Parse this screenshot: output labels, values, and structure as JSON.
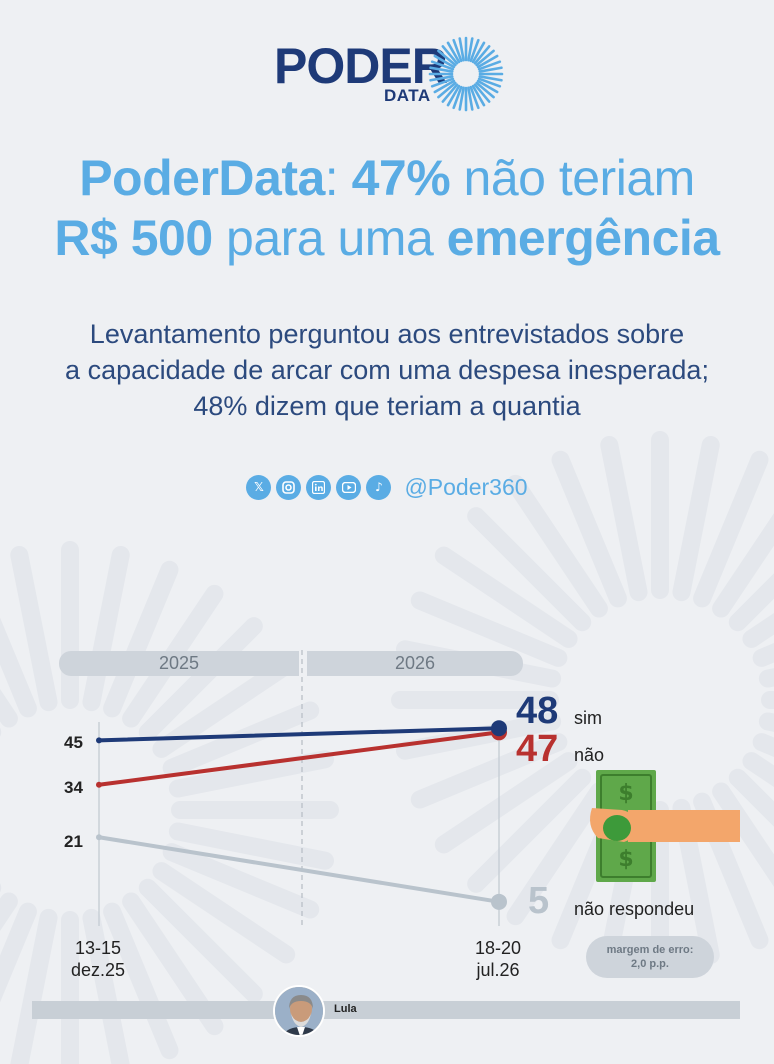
{
  "logo": {
    "word": "PODER",
    "sub": "DATA"
  },
  "title": {
    "line1": [
      {
        "text": "PoderData",
        "bold": true
      },
      {
        "text": ": ",
        "bold": false
      },
      {
        "text": "47%",
        "bold": true
      },
      {
        "text": " não teriam",
        "bold": false
      }
    ],
    "line2": [
      {
        "text": "R$ 500",
        "bold": true
      },
      {
        "text": " para uma ",
        "bold": false
      },
      {
        "text": "emergência",
        "bold": true
      }
    ]
  },
  "subtitle": {
    "line1": "Levantamento perguntou aos entrevistados sobre",
    "line2": "a capacidade de arcar com uma despesa inesperada;",
    "line3": "48% dizem que teriam a quantia"
  },
  "social": {
    "icons": [
      "x-icon",
      "instagram-icon",
      "linkedin-icon",
      "youtube-icon",
      "tiktok-icon"
    ],
    "handle": "@Poder360"
  },
  "chart_data": {
    "type": "line",
    "x": [
      "13-15 dez.25",
      "18-20 jul.26"
    ],
    "x_ticks": [
      {
        "line1": "13-15",
        "line2": "dez.25"
      },
      {
        "line1": "18-20",
        "line2": "jul.26"
      }
    ],
    "years": [
      "2025",
      "2026"
    ],
    "series": [
      {
        "name": "sim",
        "values": [
          45,
          48
        ],
        "color": "#1e3a78"
      },
      {
        "name": "não",
        "values": [
          34,
          47
        ],
        "color": "#b8312f"
      },
      {
        "name": "não respondeu",
        "values": [
          21,
          5
        ],
        "color": "#b9c3cc"
      }
    ],
    "ylim": [
      0,
      55
    ],
    "margin_label": {
      "line1": "margem de erro:",
      "line2": "2,0 p.p."
    },
    "footer_label": "Lula"
  },
  "colors": {
    "accent": "#5aace4",
    "brand": "#1e3a78"
  }
}
